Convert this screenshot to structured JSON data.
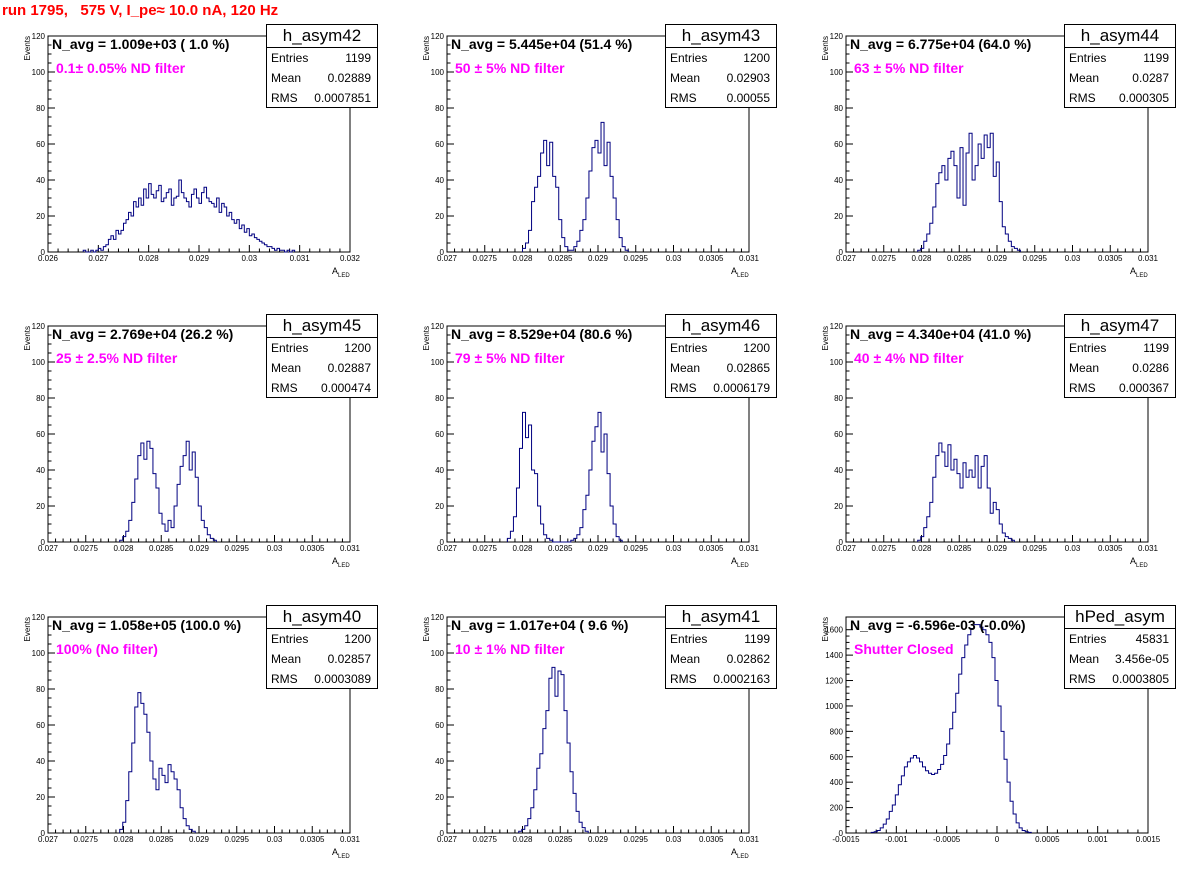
{
  "page_title": "run 1795,   575 V, I_pe≈ 10.0 nA, 120 Hz",
  "colors": {
    "title": "#ff0000",
    "hist_line": "#000080",
    "filter_text": "#ff00ff"
  },
  "chart_data": [
    {
      "type": "histogram",
      "name": "h_asym42",
      "n_avg": "N_avg = 1.009e+03 ( 1.0 %)",
      "filter_label": "0.1± 0.05% ND filter",
      "stats": {
        "entries": "1199",
        "mean": "0.02889",
        "rms": "0.0007851"
      },
      "xlabel": "A",
      "xlabel_sub": "LED",
      "ylabel": "Events",
      "xlim": [
        0.026,
        0.032
      ],
      "ylim": [
        0,
        120
      ],
      "xticks": [
        0.026,
        0.027,
        0.028,
        0.029,
        0.03,
        0.031,
        0.032
      ],
      "xtick_labels": [
        "0.026",
        "0.027",
        "0.028",
        "0.029",
        "0.03",
        "0.031",
        "0.032"
      ],
      "yticks": [
        0,
        20,
        40,
        60,
        80,
        100,
        120
      ],
      "ytick_labels": [
        "0",
        "20",
        "40",
        "60",
        "80",
        "100",
        "120"
      ],
      "bin_start": 0.0267,
      "bin_width": 5e-05,
      "counts": [
        1,
        0,
        0,
        1,
        0,
        1,
        2,
        1,
        3,
        4,
        7,
        9,
        7,
        12,
        10,
        12,
        16,
        18,
        22,
        20,
        28,
        25,
        30,
        26,
        35,
        30,
        38,
        32,
        30,
        34,
        37,
        28,
        30,
        33,
        35,
        26,
        30,
        31,
        40,
        33,
        30,
        28,
        25,
        32,
        35,
        30,
        27,
        33,
        36,
        30,
        28,
        27,
        25,
        30,
        22,
        27,
        25,
        20,
        22,
        18,
        16,
        18,
        13,
        15,
        11,
        13,
        9,
        10,
        8,
        7,
        6,
        5,
        4,
        3,
        3,
        2,
        1,
        2,
        1,
        1,
        0,
        1,
        0,
        1
      ]
    },
    {
      "type": "histogram",
      "name": "h_asym43",
      "n_avg": "N_avg = 5.445e+04 (51.4 %)",
      "filter_label": "50 ± 5% ND filter",
      "stats": {
        "entries": "1200",
        "mean": "0.02903",
        "rms": "0.00055"
      },
      "xlabel": "A",
      "xlabel_sub": "LED",
      "ylabel": "Events",
      "xlim": [
        0.027,
        0.031
      ],
      "ylim": [
        0,
        120
      ],
      "xticks": [
        0.027,
        0.0275,
        0.028,
        0.0285,
        0.029,
        0.0295,
        0.03,
        0.0305,
        0.031
      ],
      "xtick_labels": [
        "0.027",
        "0.0275",
        "0.028",
        "0.0285",
        "0.029",
        "0.0295",
        "0.03",
        "0.0305",
        "0.031"
      ],
      "yticks": [
        0,
        20,
        40,
        60,
        80,
        100,
        120
      ],
      "ytick_labels": [
        "0",
        "20",
        "40",
        "60",
        "80",
        "100",
        "120"
      ],
      "bin_start": 0.028,
      "bin_width": 4e-05,
      "counts": [
        2,
        5,
        12,
        28,
        36,
        42,
        55,
        62,
        48,
        61,
        42,
        36,
        18,
        8,
        3,
        1,
        1,
        3,
        6,
        12,
        18,
        30,
        45,
        58,
        62,
        55,
        72,
        48,
        61,
        42,
        30,
        18,
        8,
        3,
        1
      ]
    },
    {
      "type": "histogram",
      "name": "h_asym44",
      "n_avg": "N_avg = 6.775e+04 (64.0 %)",
      "filter_label": "63 ± 5% ND filter",
      "stats": {
        "entries": "1199",
        "mean": "0.0287",
        "rms": "0.000305"
      },
      "xlabel": "A",
      "xlabel_sub": "LED",
      "ylabel": "Events",
      "xlim": [
        0.027,
        0.031
      ],
      "ylim": [
        0,
        120
      ],
      "xticks": [
        0.027,
        0.0275,
        0.028,
        0.0285,
        0.029,
        0.0295,
        0.03,
        0.0305,
        0.031
      ],
      "xtick_labels": [
        "0.027",
        "0.0275",
        "0.028",
        "0.0285",
        "0.029",
        "0.0295",
        "0.03",
        "0.0305",
        "0.031"
      ],
      "yticks": [
        0,
        20,
        40,
        60,
        80,
        100,
        120
      ],
      "ytick_labels": [
        "0",
        "20",
        "40",
        "60",
        "80",
        "100",
        "120"
      ],
      "bin_start": 0.02795,
      "bin_width": 4e-05,
      "counts": [
        1,
        2,
        6,
        10,
        16,
        25,
        38,
        44,
        48,
        40,
        52,
        56,
        48,
        30,
        58,
        26,
        55,
        66,
        40,
        48,
        60,
        52,
        65,
        58,
        66,
        42,
        50,
        28,
        14,
        10,
        6,
        3,
        2,
        1
      ]
    },
    {
      "type": "histogram",
      "name": "h_asym45",
      "n_avg": "N_avg = 2.769e+04 (26.2 %)",
      "filter_label": "25 ± 2.5% ND filter",
      "stats": {
        "entries": "1200",
        "mean": "0.02887",
        "rms": "0.000474"
      },
      "xlabel": "A",
      "xlabel_sub": "LED",
      "ylabel": "Events",
      "xlim": [
        0.027,
        0.031
      ],
      "ylim": [
        0,
        120
      ],
      "xticks": [
        0.027,
        0.0275,
        0.028,
        0.0285,
        0.029,
        0.0295,
        0.03,
        0.0305,
        0.031
      ],
      "xtick_labels": [
        "0.027",
        "0.0275",
        "0.028",
        "0.0285",
        "0.029",
        "0.0295",
        "0.03",
        "0.0305",
        "0.031"
      ],
      "yticks": [
        0,
        20,
        40,
        60,
        80,
        100,
        120
      ],
      "ytick_labels": [
        "0",
        "20",
        "40",
        "60",
        "80",
        "100",
        "120"
      ],
      "bin_start": 0.02795,
      "bin_width": 4e-05,
      "counts": [
        1,
        3,
        6,
        12,
        22,
        35,
        48,
        55,
        46,
        56,
        52,
        38,
        30,
        16,
        10,
        6,
        12,
        8,
        20,
        32,
        42,
        48,
        56,
        40,
        50,
        36,
        20,
        12,
        8,
        4,
        2,
        1
      ]
    },
    {
      "type": "histogram",
      "name": "h_asym46",
      "n_avg": "N_avg = 8.529e+04 (80.6 %)",
      "filter_label": "79 ± 5% ND filter",
      "stats": {
        "entries": "1200",
        "mean": "0.02865",
        "rms": "0.0006179"
      },
      "xlabel": "A",
      "xlabel_sub": "LED",
      "ylabel": "Events",
      "xlim": [
        0.027,
        0.031
      ],
      "ylim": [
        0,
        120
      ],
      "xticks": [
        0.027,
        0.0275,
        0.028,
        0.0285,
        0.029,
        0.0295,
        0.03,
        0.0305,
        0.031
      ],
      "xtick_labels": [
        "0.027",
        "0.0275",
        "0.028",
        "0.0285",
        "0.029",
        "0.0295",
        "0.03",
        "0.0305",
        "0.031"
      ],
      "yticks": [
        0,
        20,
        40,
        60,
        80,
        100,
        120
      ],
      "ytick_labels": [
        "0",
        "20",
        "40",
        "60",
        "80",
        "100",
        "120"
      ],
      "bin_start": 0.0278,
      "bin_width": 4e-05,
      "counts": [
        2,
        6,
        14,
        30,
        52,
        72,
        58,
        65,
        40,
        38,
        20,
        10,
        4,
        2,
        1,
        0,
        0,
        0,
        0,
        0,
        0,
        1,
        2,
        4,
        8,
        18,
        26,
        40,
        56,
        64,
        72,
        50,
        60,
        38,
        20,
        10,
        3,
        1
      ]
    },
    {
      "type": "histogram",
      "name": "h_asym47",
      "n_avg": "N_avg = 4.340e+04 (41.0 %)",
      "filter_label": "40 ± 4% ND filter",
      "stats": {
        "entries": "1199",
        "mean": "0.0286",
        "rms": "0.000367"
      },
      "xlabel": "A",
      "xlabel_sub": "LED",
      "ylabel": "Events",
      "xlim": [
        0.027,
        0.031
      ],
      "ylim": [
        0,
        120
      ],
      "xticks": [
        0.027,
        0.0275,
        0.028,
        0.0285,
        0.029,
        0.0295,
        0.03,
        0.0305,
        0.031
      ],
      "xtick_labels": [
        "0.027",
        "0.0275",
        "0.028",
        "0.0285",
        "0.029",
        "0.0295",
        "0.03",
        "0.0305",
        "0.031"
      ],
      "yticks": [
        0,
        20,
        40,
        60,
        80,
        100,
        120
      ],
      "ytick_labels": [
        "0",
        "20",
        "40",
        "60",
        "80",
        "100",
        "120"
      ],
      "bin_start": 0.02795,
      "bin_width": 4e-05,
      "counts": [
        1,
        3,
        8,
        14,
        22,
        36,
        48,
        55,
        50,
        42,
        54,
        40,
        46,
        38,
        30,
        44,
        36,
        40,
        36,
        48,
        30,
        42,
        48,
        30,
        16,
        22,
        18,
        10,
        5,
        3,
        2,
        1
      ]
    },
    {
      "type": "histogram",
      "name": "h_asym40",
      "n_avg": "N_avg = 1.058e+05 (100.0 %)",
      "filter_label": "100% (No filter)",
      "stats": {
        "entries": "1200",
        "mean": "0.02857",
        "rms": "0.0003089"
      },
      "xlabel": "A",
      "xlabel_sub": "LED",
      "ylabel": "Events",
      "xlim": [
        0.027,
        0.031
      ],
      "ylim": [
        0,
        120
      ],
      "xticks": [
        0.027,
        0.0275,
        0.028,
        0.0285,
        0.029,
        0.0295,
        0.03,
        0.0305,
        0.031
      ],
      "xtick_labels": [
        "0.027",
        "0.0275",
        "0.028",
        "0.0285",
        "0.029",
        "0.0295",
        "0.03",
        "0.0305",
        "0.031"
      ],
      "yticks": [
        0,
        20,
        40,
        60,
        80,
        100,
        120
      ],
      "ytick_labels": [
        "0",
        "20",
        "40",
        "60",
        "80",
        "100",
        "120"
      ],
      "bin_start": 0.02795,
      "bin_width": 4e-05,
      "counts": [
        2,
        6,
        18,
        34,
        50,
        70,
        78,
        72,
        66,
        56,
        40,
        30,
        24,
        36,
        32,
        28,
        38,
        34,
        30,
        24,
        14,
        8,
        4,
        2,
        1
      ]
    },
    {
      "type": "histogram",
      "name": "h_asym41",
      "n_avg": "N_avg = 1.017e+04 ( 9.6 %)",
      "filter_label": "10 ± 1% ND filter",
      "stats": {
        "entries": "1199",
        "mean": "0.02862",
        "rms": "0.0002163"
      },
      "xlabel": "A",
      "xlabel_sub": "LED",
      "ylabel": "Events",
      "xlim": [
        0.027,
        0.031
      ],
      "ylim": [
        0,
        120
      ],
      "xticks": [
        0.027,
        0.0275,
        0.028,
        0.0285,
        0.029,
        0.0295,
        0.03,
        0.0305,
        0.031
      ],
      "xtick_labels": [
        "0.027",
        "0.0275",
        "0.028",
        "0.0285",
        "0.029",
        "0.0295",
        "0.03",
        "0.0305",
        "0.031"
      ],
      "yticks": [
        0,
        20,
        40,
        60,
        80,
        100,
        120
      ],
      "ytick_labels": [
        "0",
        "20",
        "40",
        "60",
        "80",
        "100",
        "120"
      ],
      "bin_start": 0.02795,
      "bin_width": 4e-05,
      "counts": [
        1,
        2,
        4,
        8,
        14,
        24,
        36,
        44,
        58,
        68,
        86,
        92,
        76,
        90,
        88,
        68,
        50,
        34,
        22,
        12,
        6,
        3,
        1
      ]
    },
    {
      "type": "histogram",
      "name": "hPed_asym",
      "n_avg": "N_avg = -6.596e-03 (-0.0%)",
      "filter_label": "Shutter Closed",
      "stats": {
        "entries": "45831",
        "mean": "3.456e-05",
        "rms": "0.0003805"
      },
      "xlabel": "",
      "xlabel_sub": "",
      "ylabel": "Events",
      "xlim": [
        -0.0015,
        0.0015
      ],
      "ylim": [
        0,
        1700
      ],
      "xticks": [
        -0.0015,
        -0.001,
        -0.0005,
        0,
        0.0005,
        0.001,
        0.0015
      ],
      "xtick_labels": [
        "-0.0015",
        "-0.001",
        "-0.0005",
        "0",
        "0.0005",
        "0.001",
        "0.0015"
      ],
      "yticks": [
        0,
        200,
        400,
        600,
        800,
        1000,
        1200,
        1400,
        1600
      ],
      "ytick_labels": [
        "0",
        "200",
        "400",
        "600",
        "800",
        "1000",
        "1200",
        "1400",
        "1600"
      ],
      "bin_start": -0.00125,
      "bin_width": 3e-05,
      "counts": [
        5,
        10,
        20,
        40,
        70,
        110,
        170,
        220,
        300,
        380,
        450,
        520,
        560,
        590,
        610,
        590,
        560,
        520,
        490,
        470,
        460,
        470,
        500,
        540,
        610,
        700,
        820,
        950,
        1100,
        1250,
        1380,
        1480,
        1560,
        1610,
        1640,
        1640,
        1620,
        1600,
        1560,
        1500,
        1380,
        1200,
        1000,
        800,
        580,
        400,
        250,
        150,
        80,
        40,
        20,
        10,
        5
      ]
    }
  ]
}
